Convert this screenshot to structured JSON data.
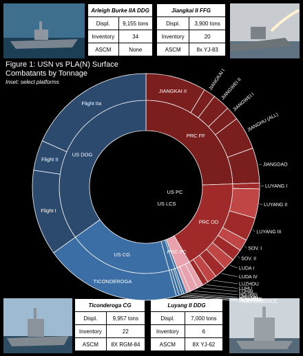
{
  "figure": {
    "title_line1": "Figure 1: USN vs PLA(N) Surface",
    "title_line2": "Combatants by Tonnage",
    "subtitle": "Inset: select platforms"
  },
  "tables": {
    "top_left": {
      "name": "Arleigh Burke IIA DDG",
      "rows": [
        {
          "label": "Displ.",
          "value": "9,155 tons"
        },
        {
          "label": "Inventory",
          "value": "34"
        },
        {
          "label": "ASCM",
          "value": "None"
        }
      ]
    },
    "top_right": {
      "name": "Jiangkai II FFG",
      "rows": [
        {
          "label": "Displ.",
          "value": "3,900 tons"
        },
        {
          "label": "Inventory",
          "value": "20"
        },
        {
          "label": "ASCM",
          "value": "8x YJ-83"
        }
      ]
    },
    "bottom_left": {
      "name": "Ticonderoga CG",
      "rows": [
        {
          "label": "Displ.",
          "value": "9,957 tons"
        },
        {
          "label": "Inventory",
          "value": "22"
        },
        {
          "label": "ASCM",
          "value": "8X RGM-84"
        }
      ]
    },
    "bottom_right": {
      "name": "Luyang II DDG",
      "rows": [
        {
          "label": "Displ.",
          "value": "7,000 tons"
        },
        {
          "label": "Inventory",
          "value": "6"
        },
        {
          "label": "ASCM",
          "value": "8X YJ-62"
        }
      ]
    }
  },
  "chart_data": {
    "type": "pie",
    "subtype": "sunburst",
    "title": "Figure 1: USN vs PLA(N) Surface Combatants by Tonnage",
    "inner_ring": [
      {
        "label": "PRC FF",
        "value": 88,
        "side": "PRC"
      },
      {
        "label": "PRC DD",
        "value": 62,
        "side": "PRC"
      },
      {
        "label": "PRC PC",
        "value": 9,
        "side": "PRC"
      },
      {
        "label": "US PC",
        "value": 1.5,
        "side": "US"
      },
      {
        "label": "US LCS",
        "value": 4,
        "side": "US"
      },
      {
        "label": "US CG",
        "value": 70,
        "side": "US"
      },
      {
        "label": "US DOG",
        "value": 125.5,
        "side": "US"
      }
    ],
    "outer_ring": [
      {
        "label": "JIANGKAI II",
        "value": 31,
        "parent": "PRC FF"
      },
      {
        "label": "JIANGKAI I",
        "value": 6,
        "parent": "PRC FF"
      },
      {
        "label": "JIANGWEI II",
        "value": 9,
        "parent": "PRC FF"
      },
      {
        "label": "JIANGWEI I",
        "value": 7,
        "parent": "PRC FF"
      },
      {
        "label": "JIANGHU (ALL)",
        "value": 17,
        "parent": "PRC FF"
      },
      {
        "label": "JIANGDAO",
        "value": 18,
        "parent": "PRC FF"
      },
      {
        "label": "LUYANG I",
        "value": 3,
        "parent": "PRC DD"
      },
      {
        "label": "LUYANG II",
        "value": 15,
        "parent": "PRC DD"
      },
      {
        "label": "LUYANG III",
        "value": 12,
        "parent": "PRC DD"
      },
      {
        "label": "SOV. I",
        "value": 6,
        "parent": "PRC DD"
      },
      {
        "label": "SOV. II",
        "value": 6,
        "parent": "PRC DD"
      },
      {
        "label": "LUDA I",
        "value": 6,
        "parent": "PRC DD"
      },
      {
        "label": "LUDA IV",
        "value": 6,
        "parent": "PRC DD"
      },
      {
        "label": "LUZHOU",
        "value": 5,
        "parent": "PRC DD"
      },
      {
        "label": "LUHU",
        "value": 3,
        "parent": "PRC DD"
      },
      {
        "label": "LUHAI",
        "value": 3,
        "parent": "PRC PC"
      },
      {
        "label": "HOUBEI",
        "value": 4,
        "parent": "PRC PC"
      },
      {
        "label": "HOUXIN",
        "value": 2,
        "parent": "PRC PC"
      },
      {
        "label": "HOUJIAN",
        "value": 1.5,
        "parent": "US PC"
      },
      {
        "label": "CYCLONE",
        "value": 1,
        "parent": "US LCS"
      },
      {
        "label": "FREEDOM",
        "value": 1.5,
        "parent": "US LCS"
      },
      {
        "label": "INDEPENDENCE",
        "value": 1.5,
        "parent": "US LCS"
      },
      {
        "label": "TICONDEROGA",
        "value": 70,
        "parent": "US CG"
      },
      {
        "label": "Flight I",
        "value": 44,
        "parent": "US DOG"
      },
      {
        "label": "Flight II",
        "value": 15.5,
        "parent": "US DOG"
      },
      {
        "label": "Flight IIa",
        "value": 66,
        "parent": "US DOG"
      }
    ],
    "inner_labels": [
      "PRC FF",
      "PRC DD",
      "PRC PC",
      "US PC",
      "US LCS",
      "US CG",
      "US DOG"
    ],
    "legend": "none",
    "colors": {
      "us": "#2c4a6e",
      "us_light": "#3a6ea5",
      "prc_dark": "#7a1e1e",
      "prc": "#a02a2a",
      "prc_light": "#c04545",
      "prc_pink": "#e8a2ad",
      "divider": "#ffffff"
    }
  }
}
